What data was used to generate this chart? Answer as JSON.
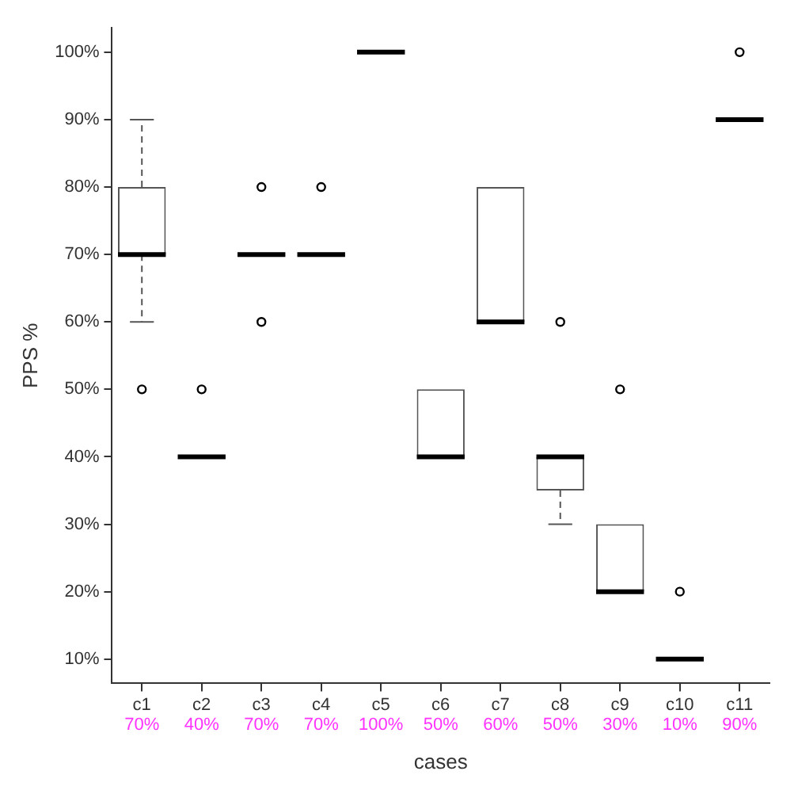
{
  "chart_data": {
    "type": "box",
    "xlabel": "cases",
    "ylabel": "PPS %",
    "categories": [
      "c1",
      "c2",
      "c3",
      "c4",
      "c5",
      "c6",
      "c7",
      "c8",
      "c9",
      "c10",
      "c11"
    ],
    "boxes": [
      {
        "low": 60,
        "q1": 70,
        "median": 70,
        "q3": 80,
        "high": 90,
        "outliers": [
          50
        ]
      },
      {
        "low": 40,
        "q1": 40,
        "median": 40,
        "q3": 40,
        "high": 40,
        "outliers": [
          50
        ]
      },
      {
        "low": 70,
        "q1": 70,
        "median": 70,
        "q3": 70,
        "high": 70,
        "outliers": [
          80,
          60
        ]
      },
      {
        "low": 70,
        "q1": 70,
        "median": 70,
        "q3": 70,
        "high": 70,
        "outliers": [
          80
        ]
      },
      {
        "low": 100,
        "q1": 100,
        "median": 100,
        "q3": 100,
        "high": 100
      },
      {
        "low": 40,
        "q1": 40,
        "median": 40,
        "q3": 50,
        "high": 50
      },
      {
        "low": 60,
        "q1": 60,
        "median": 60,
        "q3": 80,
        "high": 80
      },
      {
        "low": 30,
        "q1": 35,
        "median": 40,
        "q3": 40,
        "high": 40,
        "outliers": [
          60
        ]
      },
      {
        "low": 20,
        "q1": 20,
        "median": 20,
        "q3": 30,
        "high": 30,
        "outliers": [
          50
        ]
      },
      {
        "low": 10,
        "q1": 10,
        "median": 10,
        "q3": 10,
        "high": 10,
        "outliers": [
          20
        ]
      },
      {
        "low": 90,
        "q1": 90,
        "median": 90,
        "q3": 90,
        "high": 90,
        "outliers": [
          100
        ]
      }
    ],
    "ylim": [
      6.4,
      103.6
    ],
    "yticks": [
      {
        "value": 10,
        "label": "10%"
      },
      {
        "value": 20,
        "label": "20%"
      },
      {
        "value": 30,
        "label": "30%"
      },
      {
        "value": 40,
        "label": "40%"
      },
      {
        "value": 50,
        "label": "50%"
      },
      {
        "value": 60,
        "label": "60%"
      },
      {
        "value": 70,
        "label": "70%"
      },
      {
        "value": 80,
        "label": "80%"
      },
      {
        "value": 90,
        "label": "90%"
      },
      {
        "value": 100,
        "label": "100%"
      }
    ],
    "annotations": [
      "70%",
      "40%",
      "70%",
      "70%",
      "100%",
      "50%",
      "60%",
      "50%",
      "30%",
      "10%",
      "90%"
    ]
  }
}
